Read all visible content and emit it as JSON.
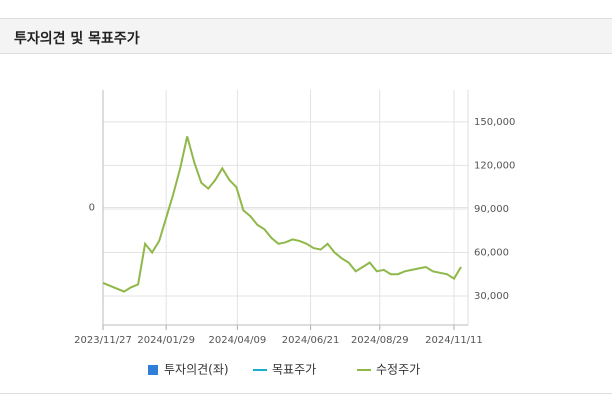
{
  "header": {
    "title": "투자의견 및 목표주가"
  },
  "chart_data": {
    "type": "line",
    "x": [
      "2023/11/27",
      "2023/12/04",
      "2023/12/11",
      "2023/12/18",
      "2023/12/25",
      "2024/01/01",
      "2024/01/08",
      "2024/01/15",
      "2024/01/22",
      "2024/01/29",
      "2024/02/05",
      "2024/02/12",
      "2024/02/19",
      "2024/02/26",
      "2024/03/04",
      "2024/03/11",
      "2024/03/18",
      "2024/03/25",
      "2024/04/01",
      "2024/04/08",
      "2024/04/15",
      "2024/04/22",
      "2024/04/29",
      "2024/05/06",
      "2024/05/13",
      "2024/05/20",
      "2024/05/27",
      "2024/06/03",
      "2024/06/10",
      "2024/06/17",
      "2024/06/24",
      "2024/07/01",
      "2024/07/08",
      "2024/07/15",
      "2024/07/22",
      "2024/07/29",
      "2024/08/05",
      "2024/08/12",
      "2024/08/19",
      "2024/08/26",
      "2024/09/02",
      "2024/09/09",
      "2024/09/16",
      "2024/09/23",
      "2024/09/30",
      "2024/10/07",
      "2024/10/14",
      "2024/10/21",
      "2024/10/28",
      "2024/11/04",
      "2024/11/11",
      "2024/11/18"
    ],
    "xlim": [
      "2023/11/27",
      "2024/11/25"
    ],
    "xticks": [
      "2023/11/27",
      "2024/01/29",
      "2024/04/09",
      "2024/06/21",
      "2024/08/29",
      "2024/11/11"
    ],
    "ylim": [
      -1,
      1
    ],
    "yticks": [
      0
    ],
    "y2lim": [
      10000,
      172000
    ],
    "y2ticks": [
      {
        "value": 30000,
        "label": "30,000"
      },
      {
        "value": 60000,
        "label": "60,000"
      },
      {
        "value": 90000,
        "label": "90,000"
      },
      {
        "value": 120000,
        "label": "120,000"
      },
      {
        "value": 150000,
        "label": "150,000"
      }
    ],
    "grid": true,
    "series": [
      {
        "name": "투자의견(좌)",
        "color": "#2f7ed8",
        "marker": "square",
        "values": [
          null,
          null,
          null,
          null,
          null,
          null,
          null,
          null,
          null,
          null,
          null,
          null,
          null,
          null,
          null,
          null,
          null,
          null,
          null,
          null,
          null,
          null,
          null,
          null,
          null,
          null,
          null,
          null,
          null,
          null,
          null,
          null,
          null,
          null,
          null,
          null,
          null,
          null,
          null,
          null,
          null,
          null,
          null,
          null,
          null,
          null,
          null,
          null,
          null,
          null,
          null,
          null
        ]
      },
      {
        "name": "목표주가",
        "color": "#1aadce",
        "axis": "y2",
        "values": [
          null,
          null,
          null,
          null,
          null,
          null,
          null,
          null,
          null,
          null,
          null,
          null,
          null,
          null,
          null,
          null,
          null,
          null,
          null,
          null,
          null,
          null,
          null,
          null,
          null,
          null,
          null,
          null,
          null,
          null,
          null,
          null,
          null,
          null,
          null,
          null,
          null,
          null,
          null,
          null,
          null,
          null,
          null,
          null,
          null,
          null,
          null,
          null,
          null,
          null,
          null,
          null
        ]
      },
      {
        "name": "수정주가",
        "color": "#8fb84a",
        "axis": "y2",
        "values": [
          39000,
          37000,
          35000,
          33000,
          36000,
          38000,
          66000,
          60000,
          68000,
          84000,
          100000,
          118000,
          140000,
          122000,
          108000,
          104000,
          110000,
          118000,
          110000,
          105000,
          89000,
          85000,
          79000,
          76000,
          70000,
          66000,
          67000,
          69000,
          68000,
          66000,
          63000,
          62000,
          66000,
          60000,
          56000,
          53000,
          47000,
          50000,
          53000,
          47000,
          48000,
          45000,
          45000,
          47000,
          48000,
          49000,
          50000,
          47000,
          46000,
          45000,
          42000,
          50000
        ]
      }
    ]
  }
}
